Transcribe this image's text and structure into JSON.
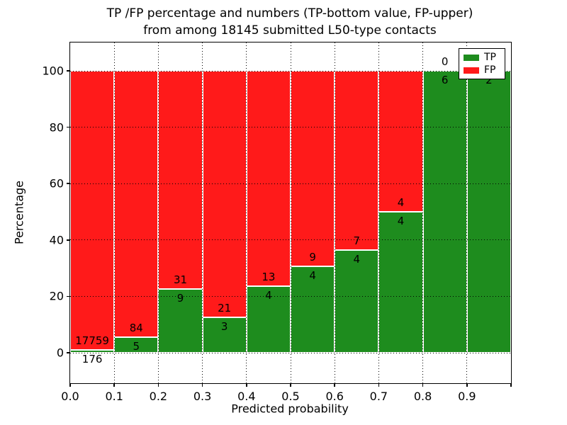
{
  "title_line1": "TP /FP percentage and numbers (TP-bottom value, FP-upper)",
  "title_line2": "from among 18145 submitted L50-type contacts",
  "chart_data": {
    "type": "bar",
    "stacked": true,
    "normalized_to_percent": true,
    "bins": [
      "0.0-0.1",
      "0.1-0.2",
      "0.2-0.3",
      "0.3-0.4",
      "0.4-0.5",
      "0.5-0.6",
      "0.6-0.7",
      "0.7-0.8",
      "0.8-0.9",
      "0.9-1.0"
    ],
    "series": [
      {
        "name": "TP",
        "color": "#1E8C1E",
        "values": [
          176,
          5,
          9,
          3,
          4,
          4,
          4,
          4,
          6,
          2
        ]
      },
      {
        "name": "FP",
        "color": "#FF1A1A",
        "values": [
          17759,
          84,
          31,
          21,
          13,
          9,
          7,
          4,
          0,
          0
        ]
      }
    ],
    "tp_percent_of_bin": [
      0.98,
      5.62,
      22.5,
      12.5,
      23.53,
      30.77,
      36.36,
      50.0,
      100.0,
      100.0
    ],
    "xlabel": "Predicted probability",
    "ylabel": "Percentage",
    "x_tick_labels": [
      "0.0",
      "0.1",
      "0.2",
      "0.3",
      "0.4",
      "0.5",
      "0.6",
      "0.7",
      "0.8",
      "0.9"
    ],
    "y_ticks": [
      0,
      20,
      40,
      60,
      80,
      100
    ],
    "xlim": [
      0.0,
      1.0
    ],
    "ylim": [
      -11,
      110
    ],
    "grid": {
      "style": "dotted",
      "color": "#000000",
      "above_bars": true
    },
    "bar_edge_color": "#ffffff",
    "legend": {
      "position": "upper-right",
      "entries": [
        {
          "label": "TP",
          "color": "#1E8C1E"
        },
        {
          "label": "FP",
          "color": "#FF1A1A"
        }
      ]
    },
    "annotation_rule": "FP count printed above TP/FP boundary, TP count printed below boundary"
  }
}
